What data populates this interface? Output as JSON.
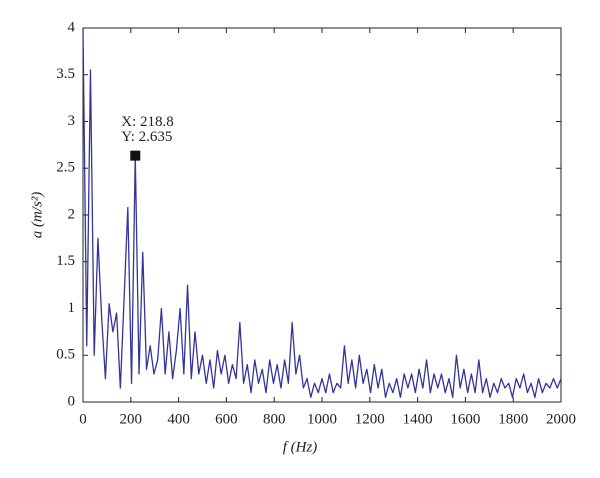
{
  "chart_data": {
    "type": "line",
    "xlabel": "f (Hz)",
    "ylabel": "a (m/s²)",
    "xlim": [
      0,
      2000
    ],
    "ylim": [
      0,
      4
    ],
    "xticks": [
      0,
      200,
      400,
      600,
      800,
      1000,
      1200,
      1400,
      1600,
      1800,
      2000
    ],
    "yticks": [
      0,
      0.5,
      1,
      1.5,
      2,
      2.5,
      3,
      3.5,
      4
    ],
    "grid": false,
    "annotation": {
      "texts": [
        "X: 218.8",
        "Y: 2.635"
      ],
      "x": 218.8,
      "y": 2.635
    },
    "x": [
      0,
      15.625,
      31.25,
      46.875,
      62.5,
      78.125,
      93.75,
      109.375,
      125,
      140.625,
      156.25,
      171.875,
      187.5,
      203.125,
      218.75,
      234.375,
      250,
      265.625,
      281.25,
      296.875,
      312.5,
      328.125,
      343.75,
      359.375,
      375,
      390.625,
      406.25,
      421.875,
      437.5,
      453.125,
      468.75,
      484.375,
      500,
      515.625,
      531.25,
      546.875,
      562.5,
      578.125,
      593.75,
      609.375,
      625,
      640.625,
      656.25,
      671.875,
      687.5,
      703.125,
      718.75,
      734.375,
      750,
      765.625,
      781.25,
      796.875,
      812.5,
      828.125,
      843.75,
      859.375,
      875,
      890.625,
      906.25,
      921.875,
      937.5,
      953.125,
      968.75,
      984.375,
      1000,
      1015.625,
      1031.25,
      1046.875,
      1062.5,
      1078.125,
      1093.75,
      1109.375,
      1125,
      1140.625,
      1156.25,
      1171.875,
      1187.5,
      1203.125,
      1218.75,
      1234.375,
      1250,
      1265.625,
      1281.25,
      1296.875,
      1312.5,
      1328.125,
      1343.75,
      1359.375,
      1375,
      1390.625,
      1406.25,
      1421.875,
      1437.5,
      1453.125,
      1468.75,
      1484.375,
      1500,
      1515.625,
      1531.25,
      1546.875,
      1562.5,
      1578.125,
      1593.75,
      1609.375,
      1625,
      1640.625,
      1656.25,
      1671.875,
      1687.5,
      1703.125,
      1718.75,
      1734.375,
      1750,
      1765.625,
      1781.25,
      1796.875,
      1812.5,
      1828.125,
      1843.75,
      1859.375,
      1875,
      1890.625,
      1906.25,
      1921.875,
      1937.5,
      1953.125,
      1968.75,
      1984.375,
      2000
    ],
    "series": [
      {
        "color": "#34339a",
        "values": [
          4.0,
          0.6,
          3.55,
          0.5,
          1.75,
          0.9,
          0.25,
          1.05,
          0.75,
          0.95,
          0.15,
          1.1,
          2.08,
          0.2,
          2.635,
          0.3,
          1.6,
          0.35,
          0.6,
          0.3,
          0.45,
          1.0,
          0.3,
          0.75,
          0.25,
          0.55,
          1.0,
          0.3,
          1.25,
          0.25,
          0.75,
          0.3,
          0.5,
          0.2,
          0.45,
          0.15,
          0.55,
          0.3,
          0.5,
          0.2,
          0.4,
          0.25,
          0.85,
          0.2,
          0.4,
          0.1,
          0.45,
          0.2,
          0.35,
          0.1,
          0.45,
          0.2,
          0.4,
          0.15,
          0.45,
          0.2,
          0.85,
          0.3,
          0.5,
          0.15,
          0.25,
          0.05,
          0.2,
          0.1,
          0.25,
          0.1,
          0.3,
          0.1,
          0.2,
          0.15,
          0.6,
          0.2,
          0.45,
          0.15,
          0.5,
          0.2,
          0.35,
          0.1,
          0.4,
          0.15,
          0.35,
          0.05,
          0.2,
          0.1,
          0.25,
          0.05,
          0.3,
          0.15,
          0.3,
          0.1,
          0.35,
          0.15,
          0.45,
          0.1,
          0.3,
          0.15,
          0.3,
          0.1,
          0.25,
          0.05,
          0.5,
          0.15,
          0.35,
          0.1,
          0.3,
          0.1,
          0.45,
          0.1,
          0.25,
          0.05,
          0.2,
          0.1,
          0.25,
          0.15,
          0.2,
          0.05,
          0.25,
          0.15,
          0.3,
          0.1,
          0.2,
          0.05,
          0.25,
          0.1,
          0.2,
          0.15,
          0.25,
          0.15,
          0.25
        ]
      }
    ]
  }
}
